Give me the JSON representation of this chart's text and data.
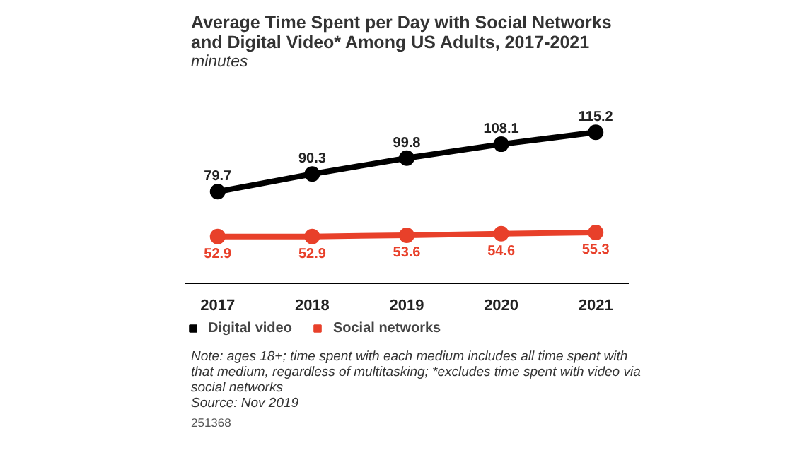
{
  "chart_data": {
    "type": "line",
    "title": "Average Time Spent per Day with Social Networks and Digital Video* Among US Adults, 2017-2021",
    "subtitle": "minutes",
    "categories": [
      "2017",
      "2018",
      "2019",
      "2020",
      "2021"
    ],
    "series": [
      {
        "name": "Digital video",
        "color": "#000000",
        "values": [
          79.7,
          90.3,
          99.8,
          108.1,
          115.2
        ]
      },
      {
        "name": "Social networks",
        "color": "#e8402a",
        "values": [
          52.9,
          52.9,
          53.6,
          54.6,
          55.3
        ]
      }
    ],
    "data_labels": true,
    "marker": "circle",
    "line_style": "solid",
    "grid": false,
    "legend": "bottom",
    "annotations": [
      "Note: ages 18+; time spent with each medium includes all time spent with that medium, regardless of multitasking; *excludes time spent with video via social networks",
      "Source: Nov 2019",
      "251368"
    ]
  }
}
